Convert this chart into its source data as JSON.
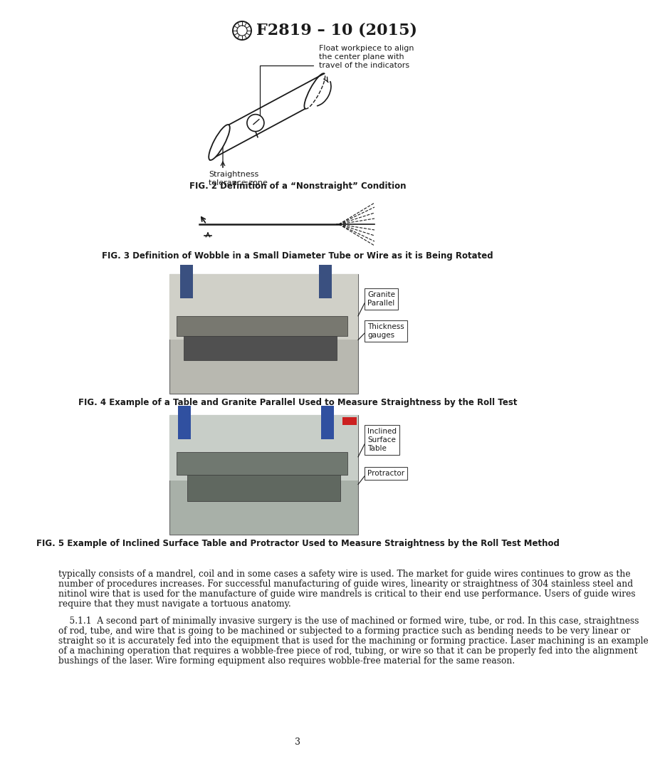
{
  "page_width": 8.16,
  "page_height": 10.56,
  "bg_color": "#ffffff",
  "text_color": "#1a1a1a",
  "header_title": "F2819 – 10 (2015)",
  "fig2_caption": "FIG. 2 Definition of a “Nonstraight” Condition",
  "fig3_caption": "FIG. 3 Definition of Wobble in a Small Diameter Tube or Wire as it is Being Rotated",
  "fig4_caption": "FIG. 4 Example of a Table and Granite Parallel Used to Measure Straightness by the Roll Test",
  "fig5_caption": "FIG. 5 Example of Inclined Surface Table and Protractor Used to Measure Straightness by the Roll Test Method",
  "page_number": "3",
  "body_text_1a": "typically consists of a mandrel, coil and in some cases a safety wire is used. The market for guide wires continues to grow as the",
  "body_text_1b": "number of procedures increases. For successful manufacturing of guide wires, linearity or straightness of 304 stainless steel and",
  "body_text_1c": "nitinol wire that is used for the manufacture of guide wire mandrels is critical to their end use performance. Users of guide wires",
  "body_text_1d": "require that they must navigate a tortuous anatomy.",
  "body_text_2a": "    5.1.1  A second part of minimally invasive surgery is the use of machined or formed wire, tube, or rod. In this case, straightness",
  "body_text_2b": "of rod, tube, and wire that is going to be machined or subjected to a forming practice such as bending needs to be very linear or",
  "body_text_2c": "straight so it is accurately fed into the equipment that is used for the machining or forming practice. Laser machining is an example",
  "body_text_2d": "of a machining operation that requires a wobble-free piece of rod, tubing, or wire so that it can be properly fed into the alignment",
  "body_text_2e": "bushings of the laser. Wire forming equipment also requires wobble-free material for the same reason.",
  "fig2_ann1": "Float workpiece to align",
  "fig2_ann2": "the center plane with",
  "fig2_ann3": "travel of the indicators",
  "fig2_ann4": "Straightness",
  "fig2_ann5": "tolerance zone",
  "fig4_label1": "Granite\nParallel",
  "fig4_label2": "Thickness\ngauges",
  "fig5_label1": "Inclined\nSurface\nTable",
  "fig5_label2": "Protractor",
  "fig4_photo_colors": [
    "#c8c8c0",
    "#a8a09a",
    "#888078",
    "#6a6058",
    "#b0b0a8"
  ],
  "fig5_photo_colors": [
    "#c0c8c0",
    "#a0a8a0",
    "#909890",
    "#686e68",
    "#b0b8b0"
  ]
}
